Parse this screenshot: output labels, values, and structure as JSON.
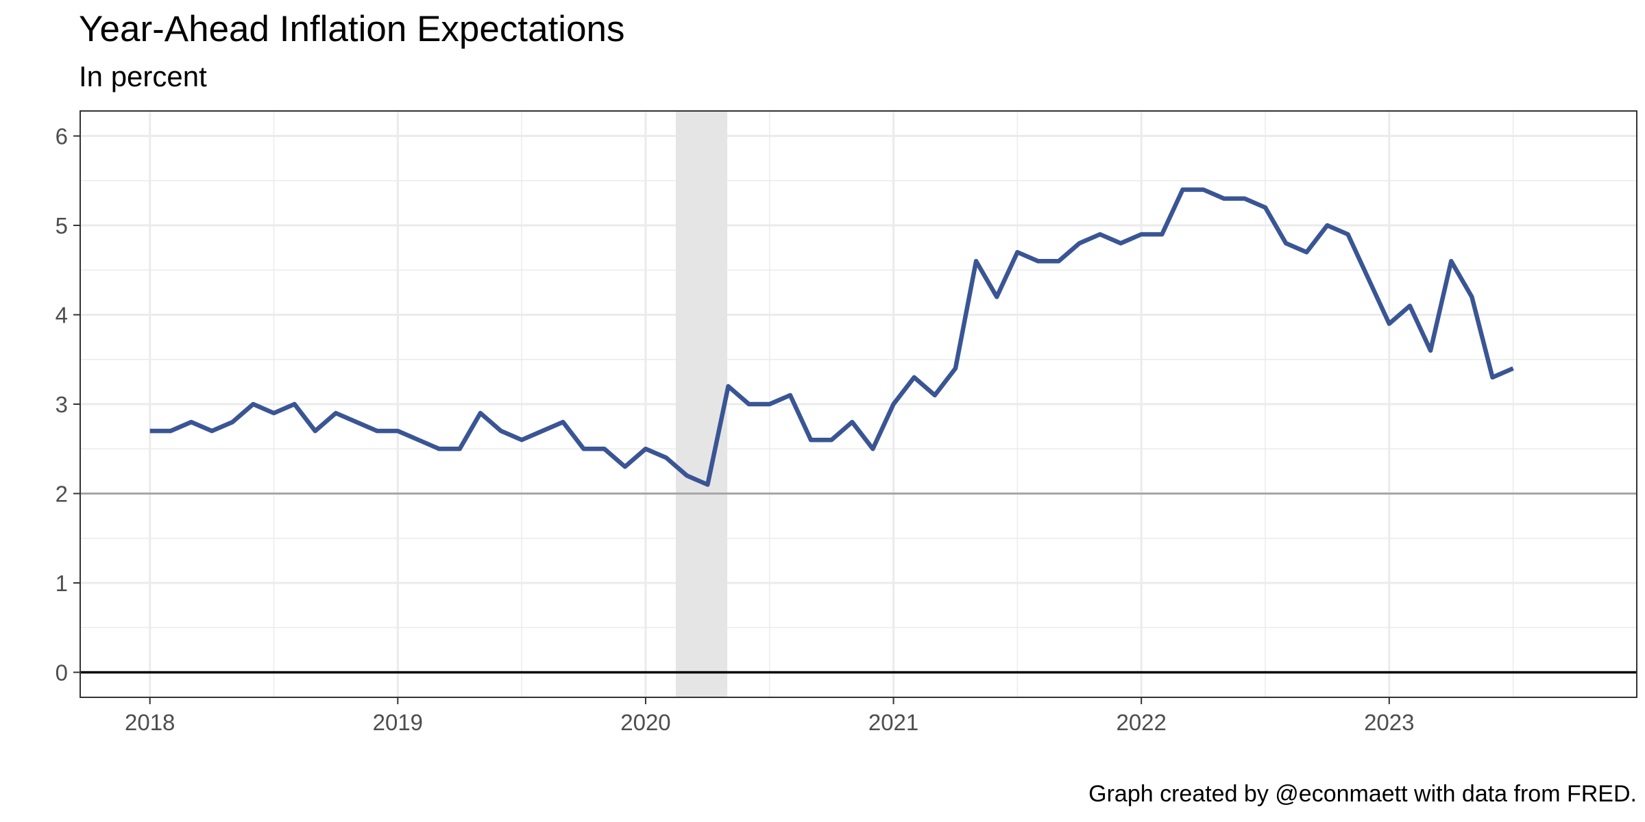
{
  "chart_data": {
    "type": "line",
    "title": "Year-Ahead Inflation Expectations",
    "subtitle": "In percent",
    "caption": "Graph created by @econmaett with data from FRED.",
    "xlabel": "",
    "ylabel": "",
    "x_ticks": [
      "2018",
      "2019",
      "2020",
      "2021",
      "2022",
      "2023"
    ],
    "y_ticks": [
      0,
      1,
      2,
      3,
      4,
      5,
      6
    ],
    "xlim": [
      "2017-09-20",
      "2023-12-31"
    ],
    "ylim": [
      -0.28,
      6.28
    ],
    "grid": true,
    "legend": "none",
    "reference_lines": [
      {
        "y": 0,
        "color": "#000000"
      },
      {
        "y": 2,
        "color": "#a6a6a6"
      }
    ],
    "shaded_regions": [
      {
        "start": "2020-02-15",
        "end": "2020-04-30",
        "color": "#e5e5e5"
      }
    ],
    "series": [
      {
        "color": "#3a5594",
        "x": [
          "2018-01",
          "2018-02",
          "2018-03",
          "2018-04",
          "2018-05",
          "2018-06",
          "2018-07",
          "2018-08",
          "2018-09",
          "2018-10",
          "2018-11",
          "2018-12",
          "2019-01",
          "2019-02",
          "2019-03",
          "2019-04",
          "2019-05",
          "2019-06",
          "2019-07",
          "2019-08",
          "2019-09",
          "2019-10",
          "2019-11",
          "2019-12",
          "2020-01",
          "2020-02",
          "2020-03",
          "2020-04",
          "2020-05",
          "2020-06",
          "2020-07",
          "2020-08",
          "2020-09",
          "2020-10",
          "2020-11",
          "2020-12",
          "2021-01",
          "2021-02",
          "2021-03",
          "2021-04",
          "2021-05",
          "2021-06",
          "2021-07",
          "2021-08",
          "2021-09",
          "2021-10",
          "2021-11",
          "2021-12",
          "2022-01",
          "2022-02",
          "2022-03",
          "2022-04",
          "2022-05",
          "2022-06",
          "2022-07",
          "2022-08",
          "2022-09",
          "2022-10",
          "2022-11",
          "2022-12",
          "2023-01",
          "2023-02",
          "2023-03",
          "2023-04",
          "2023-05",
          "2023-06",
          "2023-07"
        ],
        "values": [
          2.7,
          2.7,
          2.8,
          2.7,
          2.8,
          3.0,
          2.9,
          3.0,
          2.7,
          2.9,
          2.8,
          2.7,
          2.7,
          2.6,
          2.5,
          2.5,
          2.9,
          2.7,
          2.6,
          2.7,
          2.8,
          2.5,
          2.5,
          2.3,
          2.5,
          2.4,
          2.2,
          2.1,
          3.2,
          3.0,
          3.0,
          3.1,
          2.6,
          2.6,
          2.8,
          2.5,
          3.0,
          3.3,
          3.1,
          3.4,
          4.6,
          4.2,
          4.7,
          4.6,
          4.6,
          4.8,
          4.9,
          4.8,
          4.9,
          4.9,
          5.4,
          5.4,
          5.3,
          5.3,
          5.2,
          4.8,
          4.7,
          5.0,
          4.9,
          4.4,
          3.9,
          4.1,
          3.6,
          4.6,
          4.2,
          3.3,
          3.4
        ]
      }
    ]
  }
}
